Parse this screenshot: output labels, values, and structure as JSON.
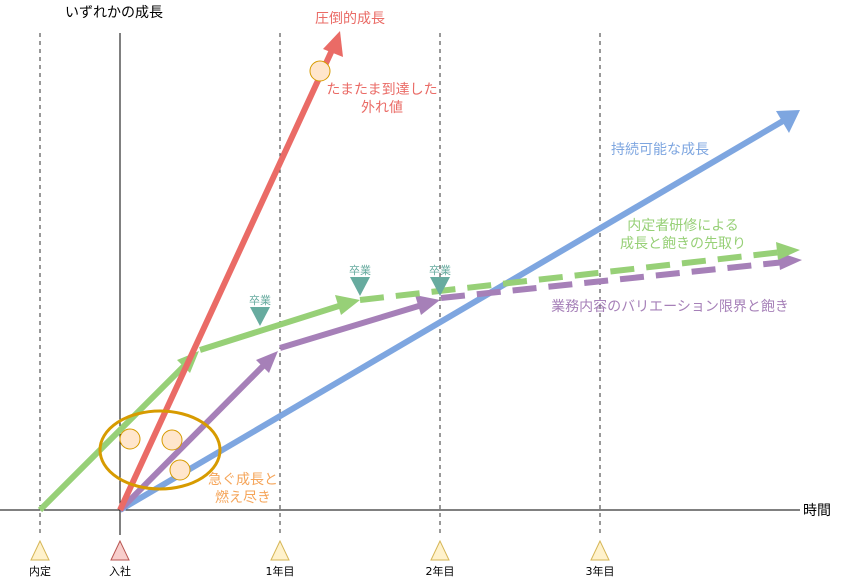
{
  "y_axis_label": "いずれかの成長",
  "x_axis_label": "時間",
  "timeline": [
    {
      "label": "内定",
      "marker_color": "#fff2cc",
      "marker_stroke": "#d6b656"
    },
    {
      "label": "入社",
      "marker_color": "#f8cecc",
      "marker_stroke": "#b85450"
    },
    {
      "label": "1年目",
      "marker_color": "#fff2cc",
      "marker_stroke": "#d6b656"
    },
    {
      "label": "2年目",
      "marker_color": "#fff2cc",
      "marker_stroke": "#d6b656"
    },
    {
      "label": "3年目",
      "marker_color": "#fff2cc",
      "marker_stroke": "#d6b656"
    }
  ],
  "arrows": {
    "overwhelming": {
      "label": "圧倒的成長",
      "color": "#ea6b66"
    },
    "outlier": {
      "line1": "たまたま到達した",
      "line2": "外れ値",
      "color": "#ea6b66"
    },
    "sustainable": {
      "label": "持続可能な成長",
      "color": "#7ea6e0"
    },
    "training": {
      "line1": "内定者研修による",
      "line2": "成長と飽きの先取り",
      "color": "#97d077"
    },
    "business": {
      "label": "業務内容のバリエーション限界と飽き",
      "color": "#a680b8"
    },
    "burnout": {
      "line1": "急ぐ成長と",
      "line2": "燃え尽き",
      "color": "#f5a55a"
    }
  },
  "graduation": {
    "label": "卒業",
    "color": "#67ab9f"
  },
  "burnout_ellipse_color": "#d79b00",
  "dots": {
    "fill": "#ffe6cc",
    "stroke": "#d79b00"
  }
}
